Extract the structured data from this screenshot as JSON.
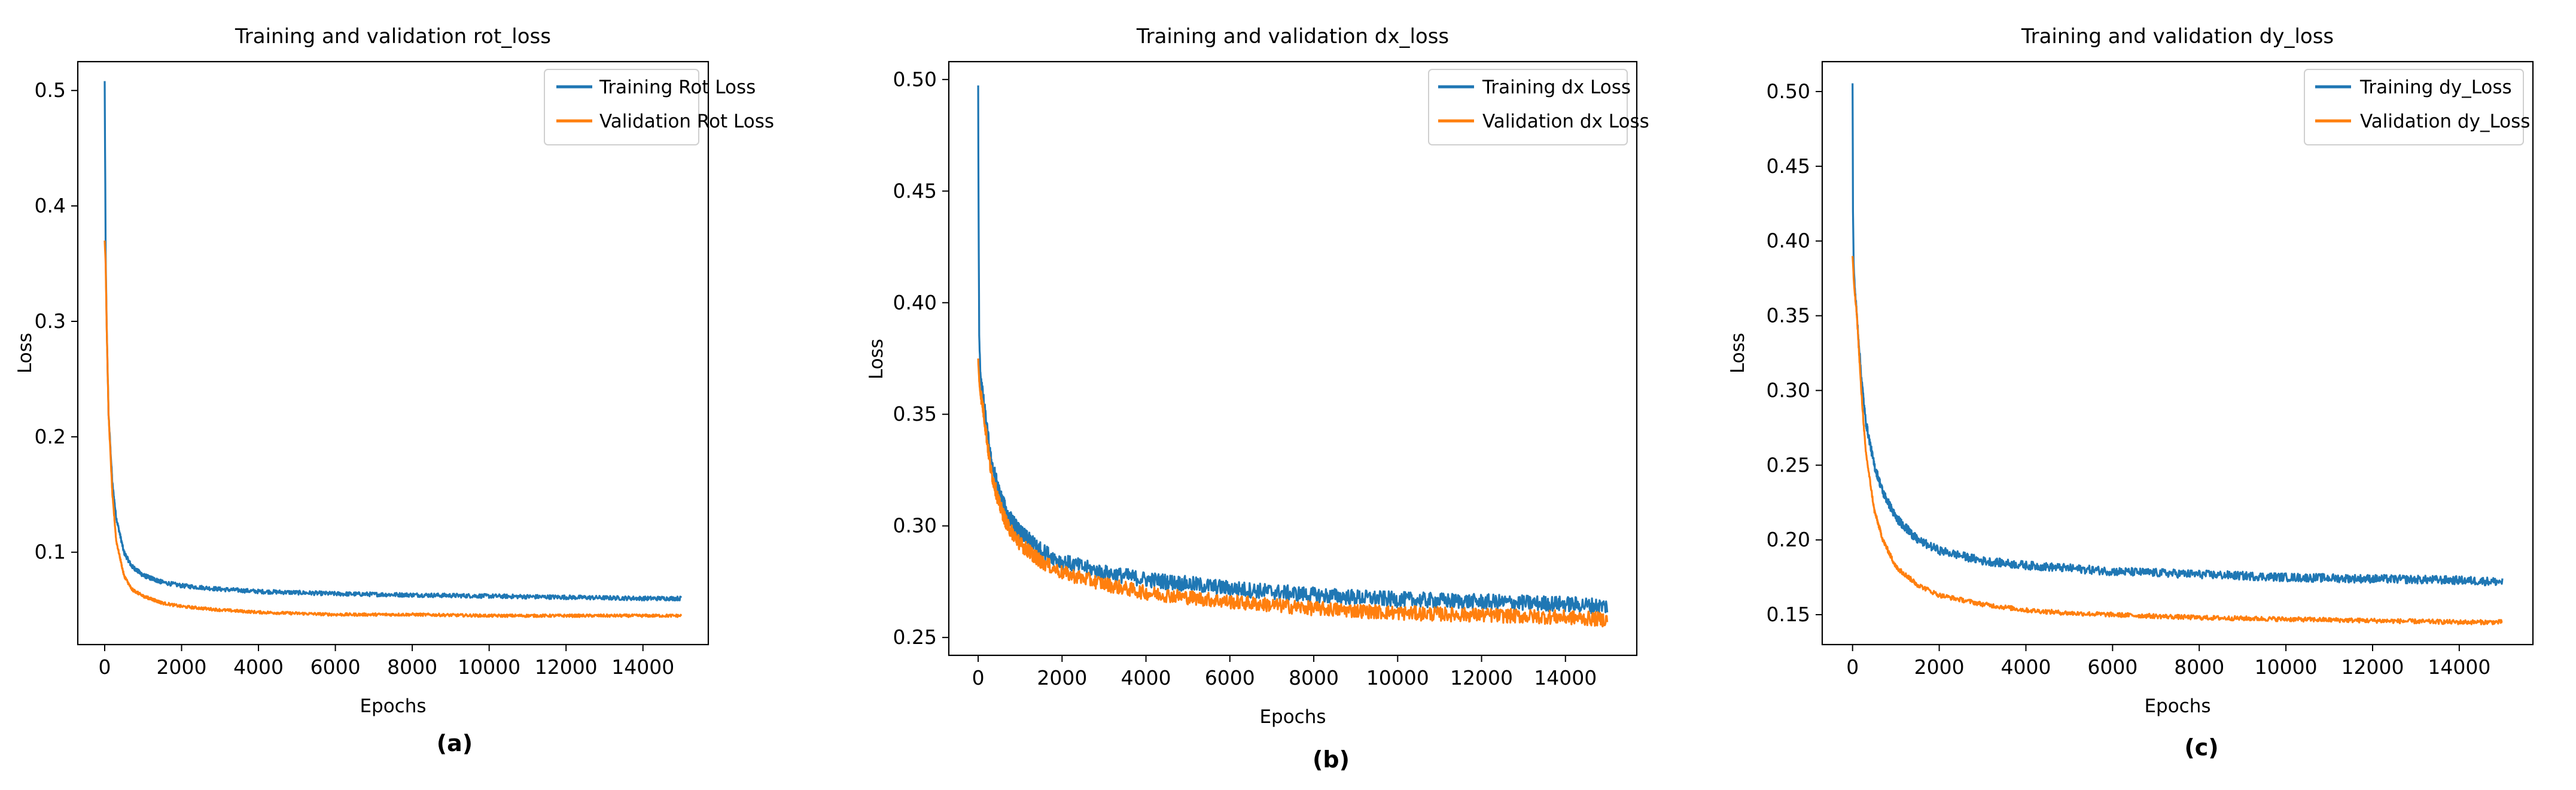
{
  "chart_data": [
    {
      "type": "line",
      "panel_label": "(a)",
      "title": "Training and validation  rot_loss",
      "xlabel": "Epochs",
      "ylabel": "Loss",
      "xlim": [
        -700,
        15700
      ],
      "ylim": [
        0.02,
        0.525
      ],
      "xticks": [
        0,
        2000,
        4000,
        6000,
        8000,
        10000,
        12000,
        14000
      ],
      "xtick_labels": [
        "0",
        "2000",
        "4000",
        "6000",
        "8000",
        "10000",
        "12000",
        "14000"
      ],
      "yticks": [
        0.1,
        0.2,
        0.3,
        0.4,
        0.5
      ],
      "ytick_labels": [
        "0.1",
        "0.2",
        "0.3",
        "0.4",
        "0.5"
      ],
      "legend_position": "top-right",
      "grid": false,
      "noise": [
        0.0018,
        0.0012
      ],
      "series": [
        {
          "name": "Training Rot Loss",
          "color": "#1f77b4",
          "x": [
            0,
            25,
            50,
            100,
            200,
            300,
            500,
            700,
            1000,
            1500,
            2000,
            3000,
            4000,
            5000,
            6000,
            8000,
            10000,
            12000,
            14000,
            15000
          ],
          "y": [
            0.508,
            0.36,
            0.3,
            0.22,
            0.16,
            0.13,
            0.1,
            0.088,
            0.08,
            0.074,
            0.071,
            0.068,
            0.066,
            0.065,
            0.064,
            0.063,
            0.062,
            0.061,
            0.06,
            0.06
          ]
        },
        {
          "name": "Validation Rot Loss",
          "color": "#ff7f0e",
          "x": [
            0,
            25,
            50,
            100,
            200,
            300,
            500,
            700,
            1000,
            1500,
            2000,
            3000,
            4000,
            5000,
            6000,
            8000,
            10000,
            12000,
            14000,
            15000
          ],
          "y": [
            0.37,
            0.35,
            0.3,
            0.22,
            0.15,
            0.11,
            0.08,
            0.068,
            0.062,
            0.056,
            0.053,
            0.05,
            0.048,
            0.047,
            0.046,
            0.046,
            0.045,
            0.045,
            0.045,
            0.045
          ]
        }
      ]
    },
    {
      "type": "line",
      "panel_label": "(b)",
      "title": "Training and validation  dx_loss",
      "xlabel": "Epochs",
      "ylabel": "Loss",
      "xlim": [
        -700,
        15700
      ],
      "ylim": [
        0.242,
        0.508
      ],
      "xticks": [
        0,
        2000,
        4000,
        6000,
        8000,
        10000,
        12000,
        14000
      ],
      "xtick_labels": [
        "0",
        "2000",
        "4000",
        "6000",
        "8000",
        "10000",
        "12000",
        "14000"
      ],
      "yticks": [
        0.25,
        0.3,
        0.35,
        0.4,
        0.45,
        0.5
      ],
      "ytick_labels": [
        "0.25",
        "0.30",
        "0.35",
        "0.40",
        "0.45",
        "0.50"
      ],
      "legend_position": "top-right",
      "grid": false,
      "noise": [
        0.0035,
        0.0032
      ],
      "series": [
        {
          "name": "Training dx Loss",
          "color": "#1f77b4",
          "x": [
            0,
            10,
            25,
            50,
            100,
            200,
            300,
            500,
            700,
            1000,
            1500,
            2000,
            3000,
            4000,
            5000,
            6000,
            8000,
            10000,
            12000,
            14000,
            15000
          ],
          "y": [
            0.497,
            0.44,
            0.385,
            0.37,
            0.36,
            0.345,
            0.33,
            0.315,
            0.305,
            0.297,
            0.289,
            0.284,
            0.279,
            0.276,
            0.274,
            0.272,
            0.269,
            0.267,
            0.266,
            0.265,
            0.264
          ]
        },
        {
          "name": "Validation dx Loss",
          "color": "#ff7f0e",
          "x": [
            0,
            10,
            25,
            50,
            100,
            200,
            300,
            500,
            700,
            1000,
            1500,
            2000,
            3000,
            4000,
            5000,
            6000,
            8000,
            10000,
            12000,
            14000,
            15000
          ],
          "y": [
            0.375,
            0.37,
            0.365,
            0.36,
            0.355,
            0.34,
            0.325,
            0.31,
            0.3,
            0.292,
            0.284,
            0.279,
            0.274,
            0.27,
            0.268,
            0.266,
            0.263,
            0.261,
            0.26,
            0.259,
            0.258
          ]
        }
      ]
    },
    {
      "type": "line",
      "panel_label": "(c)",
      "title": "Training and validation  dy_loss",
      "xlabel": "Epochs",
      "ylabel": "Loss",
      "xlim": [
        -700,
        15700
      ],
      "ylim": [
        0.13,
        0.52
      ],
      "xticks": [
        0,
        2000,
        4000,
        6000,
        8000,
        10000,
        12000,
        14000
      ],
      "xtick_labels": [
        "0",
        "2000",
        "4000",
        "6000",
        "8000",
        "10000",
        "12000",
        "14000"
      ],
      "yticks": [
        0.15,
        0.2,
        0.25,
        0.3,
        0.35,
        0.4,
        0.45,
        0.5
      ],
      "ytick_labels": [
        "0.15",
        "0.20",
        "0.25",
        "0.30",
        "0.35",
        "0.40",
        "0.45",
        "0.50"
      ],
      "legend_position": "top-right",
      "grid": false,
      "noise": [
        0.0028,
        0.0015
      ],
      "series": [
        {
          "name": "Training dy_Loss",
          "color": "#1f77b4",
          "x": [
            0,
            10,
            25,
            50,
            100,
            200,
            300,
            500,
            700,
            1000,
            1500,
            2000,
            3000,
            4000,
            5000,
            6000,
            8000,
            10000,
            12000,
            14000,
            15000
          ],
          "y": [
            0.505,
            0.42,
            0.385,
            0.37,
            0.35,
            0.31,
            0.28,
            0.25,
            0.232,
            0.215,
            0.2,
            0.193,
            0.186,
            0.183,
            0.181,
            0.179,
            0.177,
            0.175,
            0.174,
            0.173,
            0.172
          ]
        },
        {
          "name": "Validation dy_Loss",
          "color": "#ff7f0e",
          "x": [
            0,
            10,
            25,
            50,
            100,
            200,
            300,
            500,
            700,
            1000,
            1500,
            2000,
            3000,
            4000,
            5000,
            6000,
            8000,
            10000,
            12000,
            14000,
            15000
          ],
          "y": [
            0.39,
            0.385,
            0.375,
            0.365,
            0.35,
            0.3,
            0.26,
            0.22,
            0.2,
            0.182,
            0.17,
            0.163,
            0.157,
            0.153,
            0.151,
            0.15,
            0.148,
            0.147,
            0.146,
            0.145,
            0.145
          ]
        }
      ]
    }
  ]
}
